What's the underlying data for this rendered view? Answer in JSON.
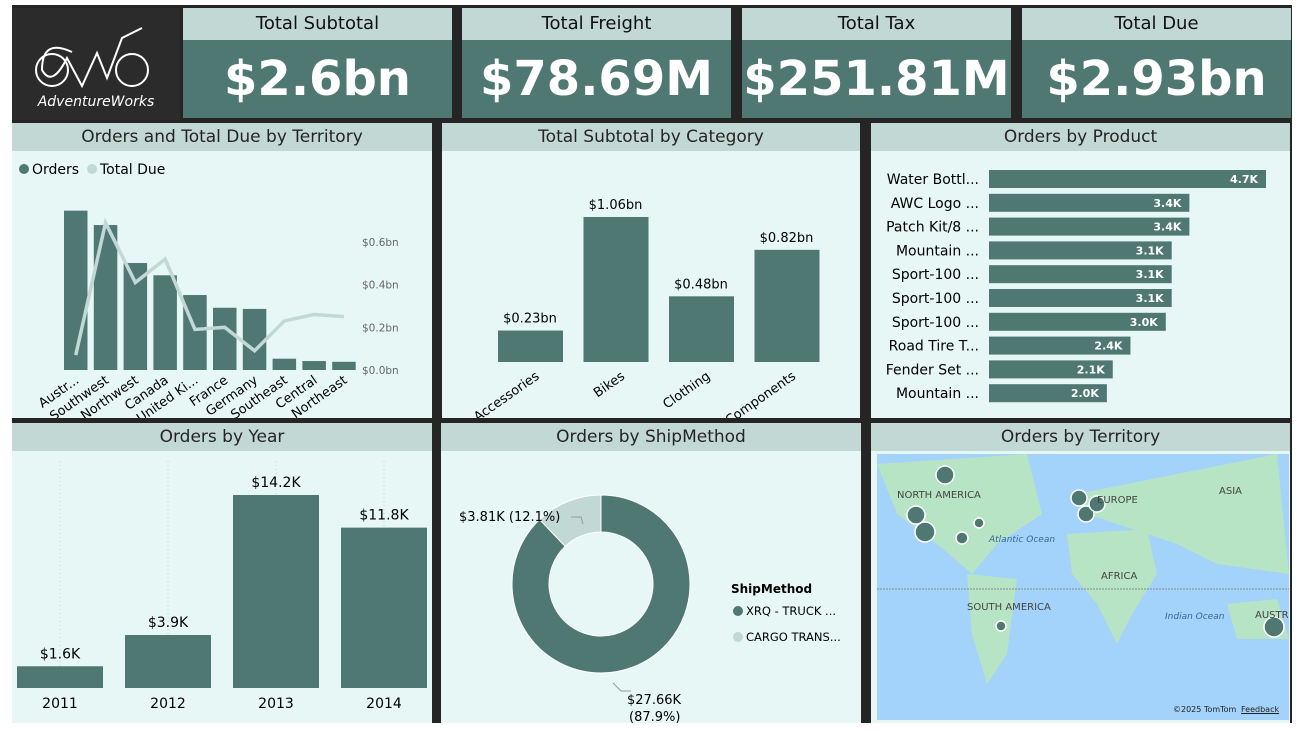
{
  "logo": {
    "brand": "AdventureWorks"
  },
  "kpis": [
    {
      "title": "Total Subtotal",
      "value": "$2.6bn"
    },
    {
      "title": "Total Freight",
      "value": "$78.69M"
    },
    {
      "title": "Total Tax",
      "value": "$251.81M"
    },
    {
      "title": "Total Due",
      "value": "$2.93bn"
    }
  ],
  "colors": {
    "primary": "#4f7872",
    "secondary": "#c2d8d4",
    "panel": "#e6f7f5"
  },
  "chart_data": [
    {
      "type": "bar+line",
      "title": "Orders and Total Due by Territory",
      "legend": [
        "Orders",
        "Total Due"
      ],
      "legend_position": "top-left",
      "categories": [
        "Austr...",
        "Southwest",
        "Northwest",
        "Canada",
        "United Ki...",
        "France",
        "Germany",
        "Southeast",
        "Central",
        "Northeast"
      ],
      "series": [
        {
          "name": "Orders",
          "type": "bar",
          "values": [
            6843,
            6224,
            4594,
            4067,
            3219,
            2672,
            2623,
            486,
            385,
            352
          ]
        },
        {
          "name": "Total Due",
          "type": "line",
          "values": [
            0.07,
            0.69,
            0.41,
            0.52,
            0.19,
            0.2,
            0.09,
            0.23,
            0.26,
            0.25
          ]
        }
      ],
      "y2_ticks": [
        "$0.0bn",
        "$0.2bn",
        "$0.4bn",
        "$0.6bn"
      ],
      "y2lim": [
        0,
        0.6
      ]
    },
    {
      "type": "bar",
      "title": "Total Subtotal by Category",
      "categories": [
        "Accessories",
        "Bikes",
        "Clothing",
        "Components"
      ],
      "values": [
        0.23,
        1.06,
        0.48,
        0.82
      ],
      "labels": [
        "$0.23bn",
        "$1.06bn",
        "$0.48bn",
        "$0.82bn"
      ]
    },
    {
      "type": "bar",
      "orientation": "horizontal",
      "title": "Orders by Product",
      "categories": [
        "Water Bottl...",
        "AWC Logo ...",
        "Patch Kit/8 ...",
        "Mountain ...",
        "Sport-100 ...",
        "Sport-100 ...",
        "Sport-100 ...",
        "Road Tire T...",
        "Fender Set ...",
        "Mountain ..."
      ],
      "values": [
        4.7,
        3.4,
        3.4,
        3.1,
        3.1,
        3.1,
        3.0,
        2.4,
        2.1,
        2.0
      ],
      "labels": [
        "4.7K",
        "3.4K",
        "3.4K",
        "3.1K",
        "3.1K",
        "3.1K",
        "3.0K",
        "2.4K",
        "2.1K",
        "2.0K"
      ]
    },
    {
      "type": "bar",
      "title": "Orders by Year",
      "categories": [
        "2011",
        "2012",
        "2013",
        "2014"
      ],
      "values": [
        1.6,
        3.9,
        14.2,
        11.8
      ],
      "labels": [
        "$1.6K",
        "$3.9K",
        "$14.2K",
        "$11.8K"
      ]
    },
    {
      "type": "pie",
      "variant": "donut",
      "title": "Orders by ShipMethod",
      "legend_title": "ShipMethod",
      "legend_position": "right",
      "slices": [
        {
          "name": "XRQ - TRUCK ...",
          "value": 27.66,
          "label": "$27.66K",
          "pct": "(87.9%)"
        },
        {
          "name": "CARGO TRANS...",
          "value": 3.81,
          "label": "$3.81K (12.1%)"
        }
      ]
    }
  ],
  "map": {
    "title": "Orders by Territory",
    "labels": [
      "NORTH AMERICA",
      "EUROPE",
      "ASIA",
      "Atlantic Ocean",
      "AFRICA",
      "SOUTH AMERICA",
      "Indian Ocean",
      "AUSTR"
    ],
    "attribution": "©2025 TomTom",
    "feedback": "Feedback"
  }
}
